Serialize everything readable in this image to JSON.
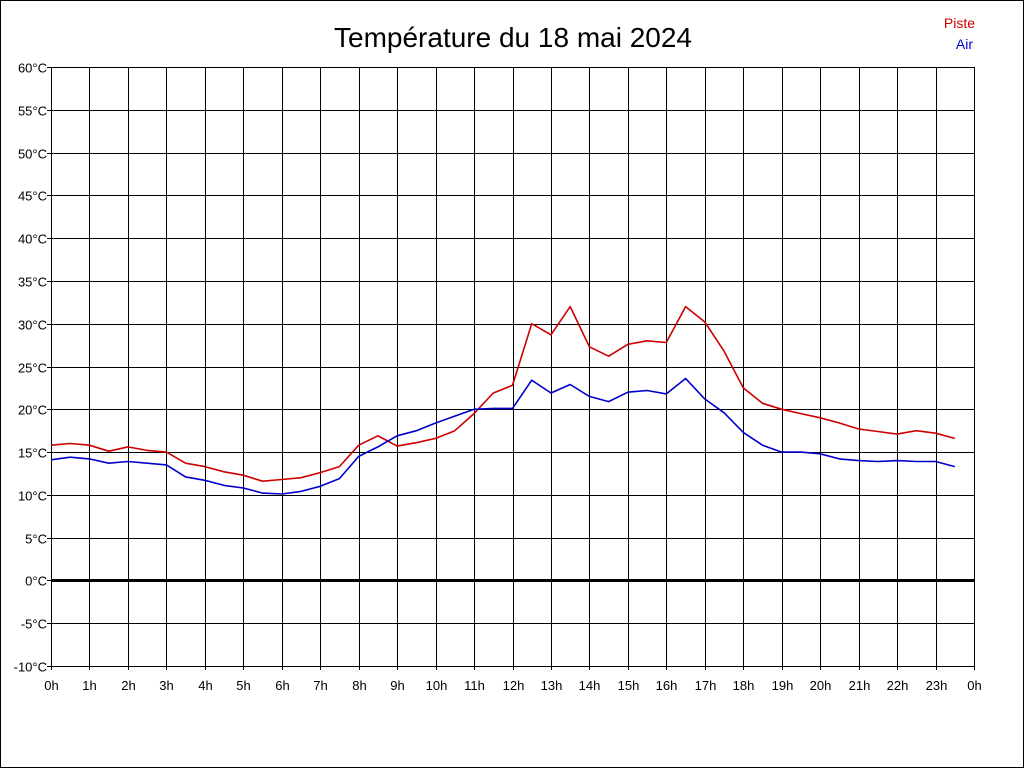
{
  "chart_data": {
    "type": "line",
    "title": "Température du 18 mai 2024",
    "xlabel": "",
    "ylabel": "",
    "x": [
      0,
      0.5,
      1,
      1.5,
      2,
      2.5,
      3,
      3.5,
      4,
      4.5,
      5,
      5.5,
      6,
      6.5,
      7,
      7.5,
      8,
      8.5,
      9,
      9.5,
      10,
      10.5,
      11,
      11.5,
      12,
      12.5,
      13,
      13.5,
      14,
      14.5,
      15,
      15.5,
      16,
      16.5,
      17,
      17.5,
      18,
      18.5,
      19,
      19.5,
      20,
      20.5,
      21,
      21.5,
      22,
      22.5,
      23,
      23.5
    ],
    "x_tick_labels": [
      "0h",
      "1h",
      "2h",
      "3h",
      "4h",
      "5h",
      "6h",
      "7h",
      "8h",
      "9h",
      "10h",
      "11h",
      "12h",
      "13h",
      "14h",
      "15h",
      "16h",
      "17h",
      "18h",
      "19h",
      "20h",
      "21h",
      "22h",
      "23h",
      "0h"
    ],
    "y_tick_labels": [
      "60°C",
      "55°C",
      "50°C",
      "45°C",
      "40°C",
      "35°C",
      "30°C",
      "25°C",
      "20°C",
      "15°C",
      "10°C",
      "5°C",
      "0°C",
      "-5°C",
      "-10°C"
    ],
    "xlim": [
      0,
      24
    ],
    "ylim": [
      -10,
      60
    ],
    "grid": true,
    "legend_position": "top-right",
    "series": [
      {
        "name": "Piste",
        "color": "#cc0000",
        "values": [
          15.8,
          16.0,
          15.8,
          15.1,
          15.6,
          15.2,
          15.0,
          13.7,
          13.3,
          12.7,
          12.3,
          11.6,
          11.8,
          12.0,
          12.6,
          13.3,
          15.8,
          16.9,
          15.7,
          16.1,
          16.6,
          17.5,
          19.5,
          21.9,
          22.8,
          30.0,
          28.7,
          32.0,
          27.3,
          26.2,
          27.6,
          28.0,
          27.8,
          32.0,
          30.2,
          26.8,
          22.5,
          20.7,
          20.0,
          19.5,
          19.0,
          18.4,
          17.7,
          17.4,
          17.1,
          17.5,
          17.2,
          16.6
        ]
      },
      {
        "name": "Air",
        "color": "#0000cc",
        "values": [
          14.1,
          14.4,
          14.2,
          13.7,
          13.9,
          13.7,
          13.5,
          12.1,
          11.7,
          11.1,
          10.8,
          10.2,
          10.1,
          10.4,
          11.0,
          11.9,
          14.5,
          15.6,
          16.9,
          17.5,
          18.4,
          19.2,
          20.0,
          20.1,
          20.1,
          23.4,
          21.9,
          22.9,
          21.5,
          20.9,
          22.0,
          22.2,
          21.8,
          23.6,
          21.2,
          19.6,
          17.3,
          15.8,
          15.0,
          15.0,
          14.8,
          14.2,
          14.0,
          13.9,
          14.0,
          13.9,
          13.9,
          13.3
        ]
      }
    ],
    "zero_line": 0
  }
}
